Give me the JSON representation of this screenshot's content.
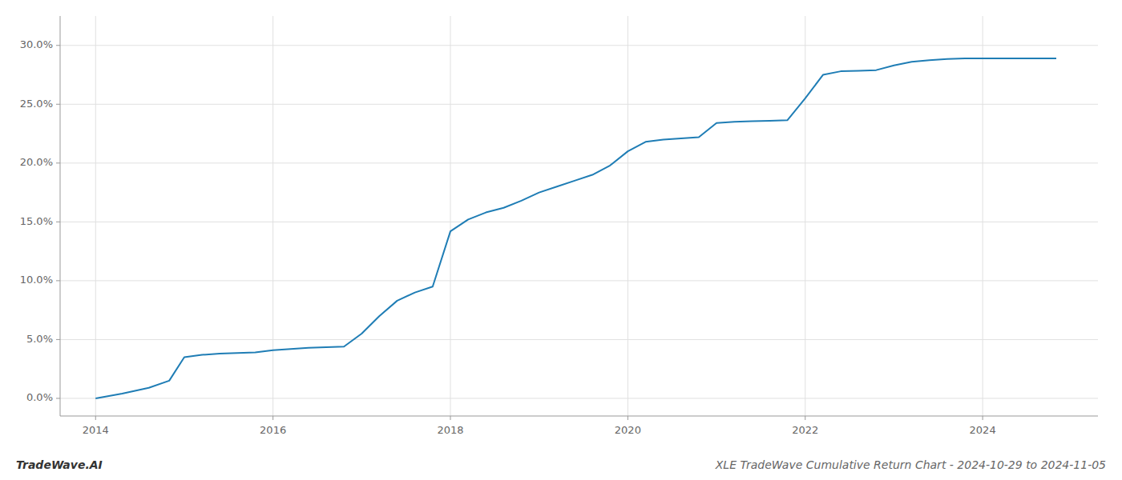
{
  "chart_data": {
    "type": "line",
    "title": "XLE TradeWave Cumulative Return Chart - 2024-10-29 to 2024-11-05",
    "annotations": [
      "TradeWave.AI"
    ],
    "x": [
      2014.0,
      2014.3,
      2014.6,
      2014.83,
      2015.0,
      2015.2,
      2015.4,
      2015.6,
      2015.8,
      2016.0,
      2016.2,
      2016.4,
      2016.6,
      2016.8,
      2017.0,
      2017.2,
      2017.4,
      2017.6,
      2017.8,
      2018.0,
      2018.2,
      2018.4,
      2018.6,
      2018.8,
      2019.0,
      2019.2,
      2019.4,
      2019.6,
      2019.8,
      2020.0,
      2020.2,
      2020.4,
      2020.6,
      2020.8,
      2021.0,
      2021.2,
      2021.4,
      2021.6,
      2021.8,
      2022.0,
      2022.2,
      2022.4,
      2022.6,
      2022.8,
      2023.0,
      2023.2,
      2023.4,
      2023.6,
      2023.8,
      2024.0,
      2024.3,
      2024.6,
      2024.83
    ],
    "values": [
      0.0,
      0.4,
      0.9,
      1.5,
      3.5,
      3.7,
      3.8,
      3.85,
      3.9,
      4.1,
      4.2,
      4.3,
      4.35,
      4.4,
      5.5,
      7.0,
      8.3,
      9.0,
      9.5,
      14.2,
      15.2,
      15.8,
      16.2,
      16.8,
      17.5,
      18.0,
      18.5,
      19.0,
      19.8,
      21.0,
      21.8,
      22.0,
      22.1,
      22.2,
      23.4,
      23.5,
      23.55,
      23.6,
      23.65,
      25.5,
      27.5,
      27.8,
      27.85,
      27.9,
      28.3,
      28.6,
      28.75,
      28.85,
      28.9,
      28.9,
      28.9,
      28.9,
      28.9
    ],
    "color": "#1f7db5",
    "grid": true,
    "xlim": [
      2013.6,
      2025.3
    ],
    "ylim": [
      -1.5,
      32.5
    ],
    "xticks": [
      2014,
      2016,
      2018,
      2020,
      2022,
      2024
    ],
    "yticks": [
      {
        "value": 0.0,
        "label": "0.0%"
      },
      {
        "value": 5.0,
        "label": "5.0%"
      },
      {
        "value": 10.0,
        "label": "10.0%"
      },
      {
        "value": 15.0,
        "label": "15.0%"
      },
      {
        "value": 20.0,
        "label": "20.0%"
      },
      {
        "value": 25.0,
        "label": "25.0%"
      },
      {
        "value": 30.0,
        "label": "30.0%"
      }
    ]
  }
}
